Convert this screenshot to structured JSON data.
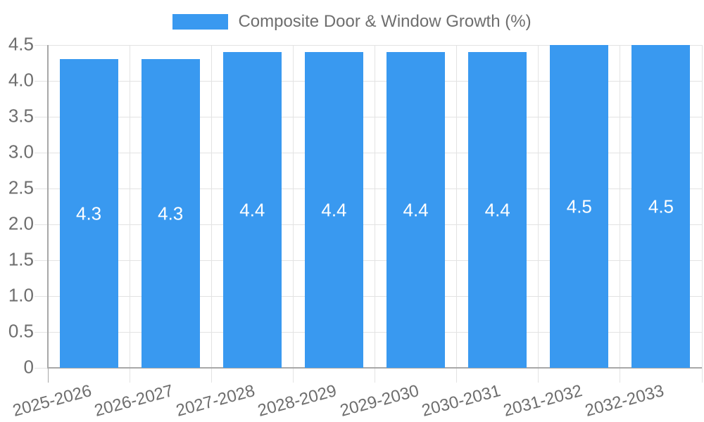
{
  "legend": {
    "label": "Composite Door & Window Growth (%)"
  },
  "colors": {
    "bar": "#3999F0",
    "grid": "#e3e3e3",
    "axis": "#a8a8a8",
    "tick_text": "#6e6e6e",
    "bar_label": "#ffffff",
    "background": "#ffffff"
  },
  "chart_data": {
    "type": "bar",
    "title": "Composite Door & Window Growth (%)",
    "legend_position": "top",
    "grid": true,
    "categories": [
      "2025-2026",
      "2026-2027",
      "2027-2028",
      "2028-2029",
      "2029-2030",
      "2030-2031",
      "2031-2032",
      "2032-2033"
    ],
    "values": [
      4.3,
      4.3,
      4.4,
      4.4,
      4.4,
      4.4,
      4.5,
      4.5
    ],
    "bar_labels": [
      "4.3",
      "4.3",
      "4.4",
      "4.4",
      "4.4",
      "4.4",
      "4.5",
      "4.5"
    ],
    "xlabel": "",
    "ylabel": "",
    "ylim": [
      0,
      4.5
    ],
    "y_ticks": [
      0,
      0.5,
      1.0,
      1.5,
      2.0,
      2.5,
      3.0,
      3.5,
      4.0,
      4.5
    ],
    "y_tick_labels": [
      "0",
      "0.5",
      "1.0",
      "1.5",
      "2.0",
      "2.5",
      "3.0",
      "3.5",
      "4.0",
      "4.5"
    ]
  }
}
